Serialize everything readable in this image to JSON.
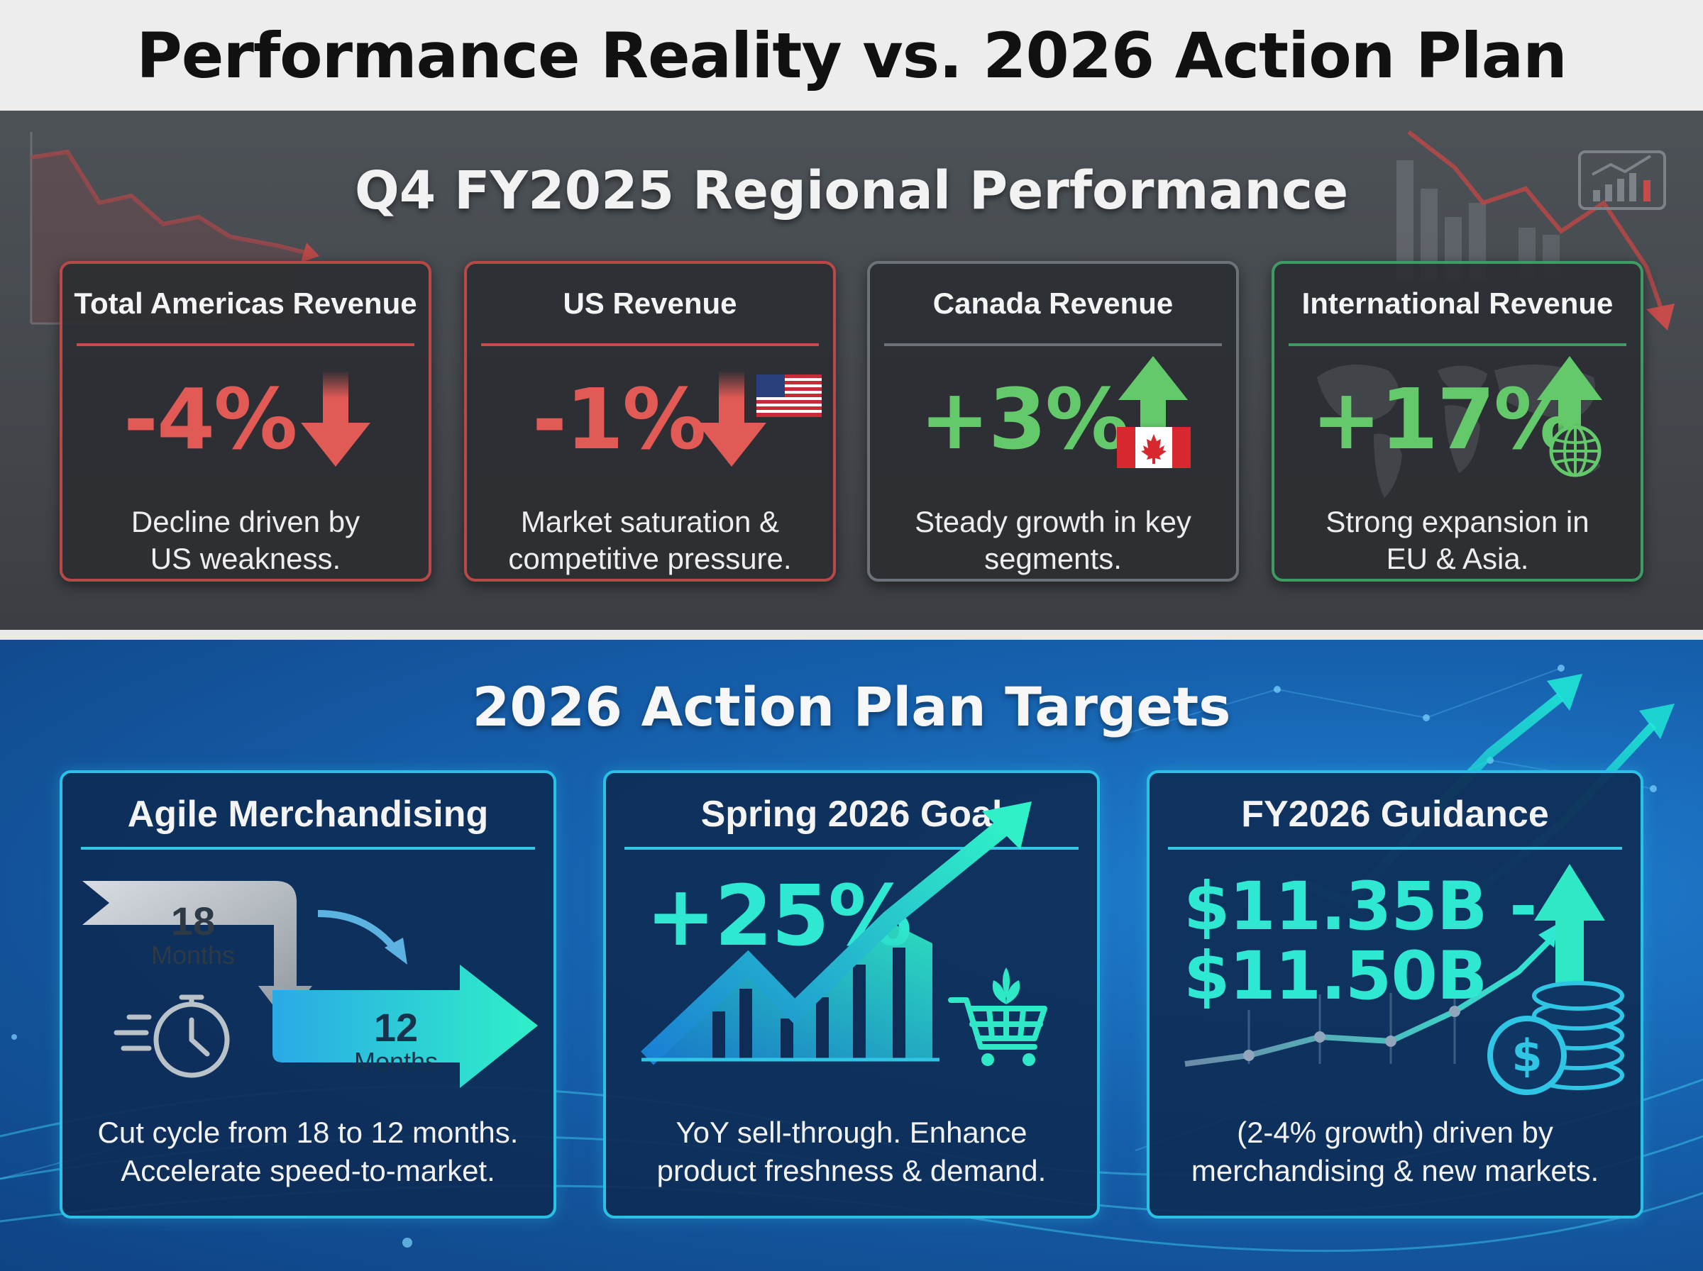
{
  "header": {
    "title": "Performance Reality vs. 2026 Action Plan"
  },
  "performance": {
    "title": "Q4 FY2025 Regional Performance",
    "cards": [
      {
        "title": "Total Americas Revenue",
        "value": "-4%",
        "desc_line1": "Decline driven by",
        "desc_line2": "US weakness.",
        "trend": "down",
        "icon": "down-arrow-icon"
      },
      {
        "title": "US Revenue",
        "value": "-1%",
        "desc_line1": "Market saturation &",
        "desc_line2": "competitive pressure.",
        "trend": "down",
        "icon": "us-flag-icon"
      },
      {
        "title": "Canada Revenue",
        "value": "+3%",
        "desc_line1": "Steady growth in key",
        "desc_line2": "segments.",
        "trend": "up",
        "icon": "canada-flag-icon"
      },
      {
        "title": "International Revenue",
        "value": "+17%",
        "desc_line1": "Strong expansion in",
        "desc_line2": "EU & Asia.",
        "trend": "up",
        "icon": "globe-icon"
      }
    ]
  },
  "plan": {
    "title": "2026 Action Plan Targets",
    "cards": [
      {
        "title": "Agile Merchandising",
        "from_value": "18",
        "from_unit": "Months",
        "to_value": "12",
        "to_unit": "Months",
        "desc_line1": "Cut cycle from 18 to 12 months.",
        "desc_line2": "Accelerate speed-to-market.",
        "icon": "stopwatch-icon"
      },
      {
        "title": "Spring 2026 Goal",
        "value": "+25%",
        "desc_line1": "YoY sell-through. Enhance",
        "desc_line2": "product freshness & demand.",
        "icon": "shopping-cart-icon"
      },
      {
        "title": "FY2026 Guidance",
        "value_line1": "$11.35B -",
        "value_line2": "$11.50B",
        "desc_line1": "(2-4% growth) driven by",
        "desc_line2": "merchandising & new markets.",
        "icon": "coin-stack-icon"
      }
    ]
  },
  "colors": {
    "negative": "#e25a55",
    "positive": "#63c96b",
    "accent_cyan": "#2ee8d2",
    "card_border_cyan": "#29c2e6"
  }
}
